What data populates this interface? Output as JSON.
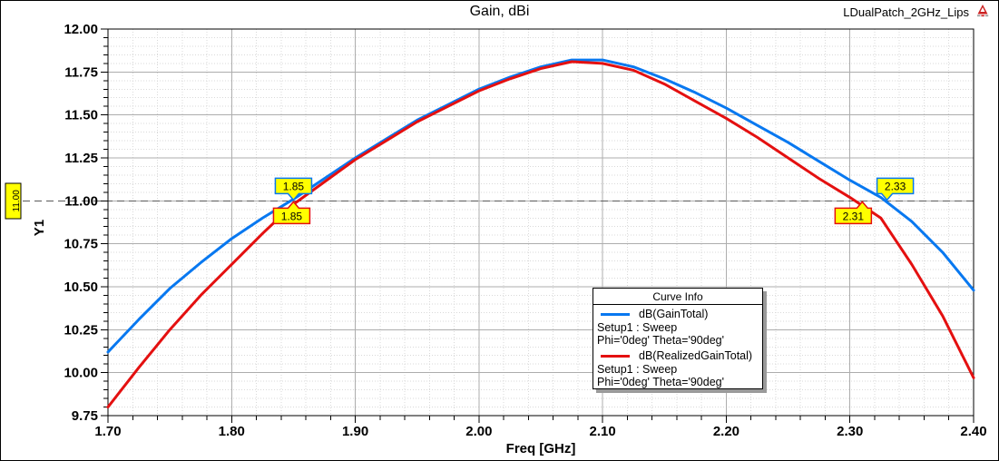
{
  "window": {
    "watermark": "LDualPatch_2GHz_Lips",
    "logo_icon": "ansys-red-triangle-icon"
  },
  "chart_data": {
    "type": "line",
    "title": "Gain, dBi",
    "xlabel": "Freq [GHz]",
    "ylabel": "Y1",
    "xlim": [
      1.7,
      2.4
    ],
    "ylim": [
      9.75,
      12.0
    ],
    "x_major_step": 0.1,
    "x_minor_step": 0.02,
    "y_major_step": 0.25,
    "y_minor_step": 0.05,
    "grid": true,
    "legend_position": "inside-lower-right",
    "x": [
      1.7,
      1.725,
      1.75,
      1.775,
      1.8,
      1.825,
      1.85,
      1.875,
      1.9,
      1.925,
      1.95,
      1.975,
      2.0,
      2.025,
      2.05,
      2.075,
      2.1,
      2.125,
      2.15,
      2.175,
      2.2,
      2.225,
      2.25,
      2.275,
      2.3,
      2.325,
      2.35,
      2.375,
      2.4
    ],
    "series": [
      {
        "name": "dB(GainTotal)",
        "color": "#0878F0",
        "values": [
          10.12,
          10.31,
          10.49,
          10.64,
          10.78,
          10.9,
          11.01,
          11.13,
          11.25,
          11.36,
          11.47,
          11.56,
          11.65,
          11.72,
          11.78,
          11.82,
          11.82,
          11.78,
          11.71,
          11.63,
          11.54,
          11.44,
          11.34,
          11.23,
          11.12,
          11.02,
          10.88,
          10.7,
          10.48
        ]
      },
      {
        "name": "dB(RealizedGainTotal)",
        "color": "#E41010",
        "values": [
          9.8,
          10.03,
          10.25,
          10.45,
          10.63,
          10.81,
          10.98,
          11.11,
          11.24,
          11.35,
          11.46,
          11.55,
          11.64,
          11.71,
          11.77,
          11.81,
          11.8,
          11.76,
          11.68,
          11.58,
          11.48,
          11.37,
          11.25,
          11.13,
          11.02,
          10.9,
          10.63,
          10.33,
          9.97
        ]
      }
    ],
    "reference_line": {
      "y": 11.0,
      "label": "11.00",
      "style": "dashed"
    },
    "markers": [
      {
        "label": "1.85",
        "x": 1.85,
        "y": 11.0,
        "series": 0,
        "placement": "above"
      },
      {
        "label": "1.85",
        "x": 1.85,
        "y": 11.0,
        "series": 1,
        "placement": "below"
      },
      {
        "label": "2.33",
        "x": 2.33,
        "y": 11.0,
        "series": 0,
        "placement": "above"
      },
      {
        "label": "2.31",
        "x": 2.31,
        "y": 11.0,
        "series": 1,
        "placement": "below"
      }
    ]
  },
  "legend": {
    "title": "Curve Info",
    "entries": [
      {
        "name": "dB(GainTotal)",
        "color": "#0878F0",
        "detail1": "Setup1 : Sweep",
        "detail2": "Phi='0deg' Theta='90deg'"
      },
      {
        "name": "dB(RealizedGainTotal)",
        "color": "#E41010",
        "detail1": "Setup1 : Sweep",
        "detail2": "Phi='0deg' Theta='90deg'"
      }
    ]
  },
  "colors": {
    "marker_fill": "#FFFF00",
    "grid_major": "#ADADAD",
    "grid_minor": "#D9D9D9",
    "axis": "#000000",
    "ref_line": "#5A5A5A"
  }
}
